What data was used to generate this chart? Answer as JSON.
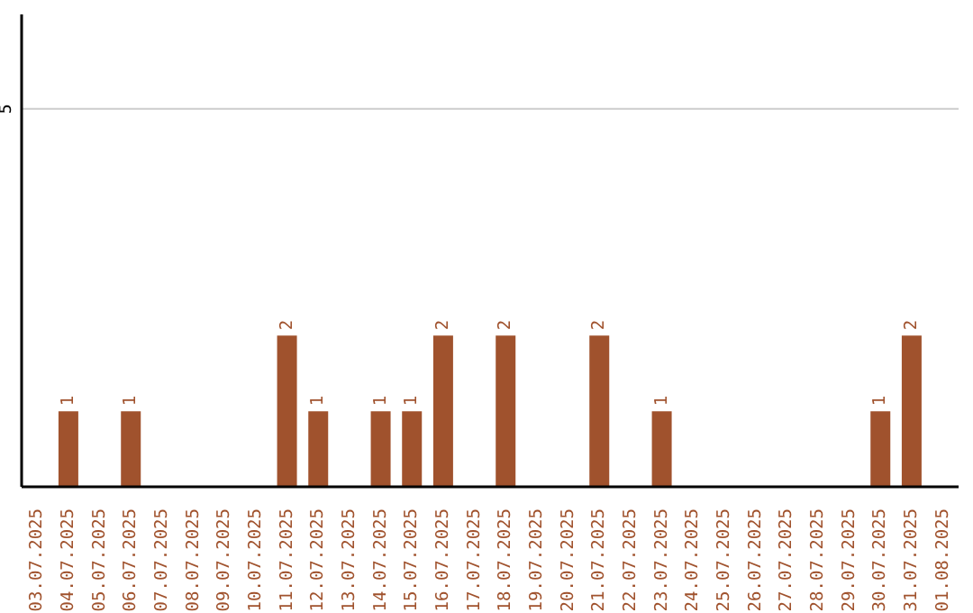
{
  "chart_data": {
    "type": "bar",
    "categories": [
      "03.07.2025",
      "04.07.2025",
      "05.07.2025",
      "06.07.2025",
      "07.07.2025",
      "08.07.2025",
      "09.07.2025",
      "10.07.2025",
      "11.07.2025",
      "12.07.2025",
      "13.07.2025",
      "14.07.2025",
      "15.07.2025",
      "16.07.2025",
      "17.07.2025",
      "18.07.2025",
      "19.07.2025",
      "20.07.2025",
      "21.07.2025",
      "22.07.2025",
      "23.07.2025",
      "24.07.2025",
      "25.07.2025",
      "26.07.2025",
      "27.07.2025",
      "28.07.2025",
      "29.07.2025",
      "30.07.2025",
      "31.07.2025",
      "01.08.2025"
    ],
    "values": [
      0,
      1,
      0,
      1,
      0,
      0,
      0,
      0,
      2,
      1,
      0,
      1,
      1,
      2,
      0,
      2,
      0,
      0,
      2,
      0,
      1,
      0,
      0,
      0,
      0,
      0,
      0,
      1,
      2,
      0
    ],
    "value_labels": [
      null,
      "1",
      null,
      "1",
      null,
      null,
      null,
      null,
      "2",
      "1",
      null,
      "1",
      "1",
      "2",
      null,
      "2",
      null,
      null,
      "2",
      null,
      "1",
      null,
      null,
      null,
      null,
      null,
      null,
      "1",
      "2",
      null
    ],
    "color": "#a0522d",
    "ylim": [
      0,
      6.25
    ],
    "yticks": [
      5
    ],
    "grid": "y"
  }
}
